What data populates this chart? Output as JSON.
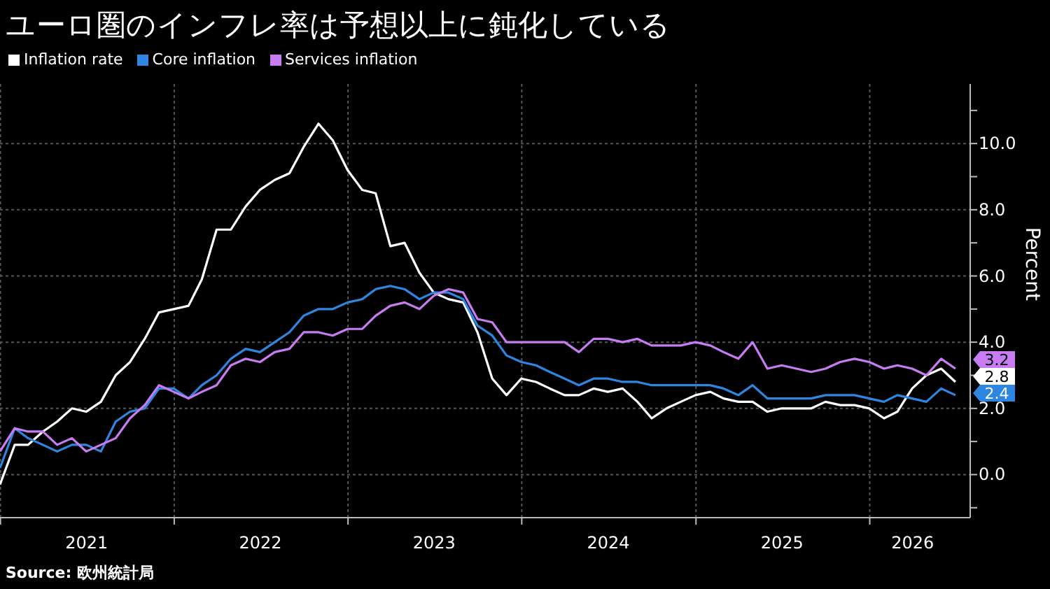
{
  "chart_data": {
    "type": "line",
    "title": "ユーロ圏のインフレ率は予想以上に鈍化している",
    "ylabel": "Percent",
    "annotations": [
      "Source: 欧州統計局"
    ],
    "legend": "top left",
    "grid": true,
    "x": [
      "2020-12-31",
      "2021-01-31",
      "2021-02-28",
      "2021-03-31",
      "2021-04-30",
      "2021-05-31",
      "2021-06-30",
      "2021-07-31",
      "2021-08-31",
      "2021-09-30",
      "2021-10-31",
      "2021-11-30",
      "2021-12-31",
      "2022-01-31",
      "2022-02-28",
      "2022-03-31",
      "2022-04-30",
      "2022-05-31",
      "2022-06-30",
      "2022-07-31",
      "2022-08-31",
      "2022-09-30",
      "2022-10-31",
      "2022-11-30",
      "2022-12-31",
      "2023-01-31",
      "2023-02-28",
      "2023-03-31",
      "2023-04-30",
      "2023-05-31",
      "2023-06-30",
      "2023-07-31",
      "2023-08-31",
      "2023-09-30",
      "2023-10-31",
      "2023-11-30",
      "2023-12-31",
      "2024-01-31",
      "2024-02-29",
      "2024-03-31",
      "2024-04-30",
      "2024-05-31",
      "2024-06-30",
      "2024-07-31",
      "2024-08-31",
      "2024-09-30",
      "2024-10-31",
      "2024-11-30",
      "2024-12-31",
      "2025-01-31",
      "2025-02-28",
      "2025-03-31",
      "2025-04-30",
      "2025-05-31",
      "2025-06-30",
      "2025-07-31",
      "2025-08-31",
      "2025-09-30",
      "2025-10-31",
      "2025-11-30",
      "2025-12-31",
      "2026-01-31",
      "2026-02-28",
      "2026-03-31",
      "2026-04-30",
      "2026-05-31",
      "2026-06-30"
    ],
    "series": [
      {
        "name": "Inflation rate",
        "color": "#ffffff",
        "values": [
          -0.3,
          0.9,
          0.9,
          1.3,
          1.6,
          2.0,
          1.9,
          2.2,
          3.0,
          3.4,
          4.1,
          4.9,
          5.0,
          5.1,
          5.9,
          7.4,
          7.4,
          8.1,
          8.6,
          8.9,
          9.1,
          9.9,
          10.6,
          10.1,
          9.2,
          8.6,
          8.5,
          6.9,
          7.0,
          6.1,
          5.5,
          5.3,
          5.2,
          4.3,
          2.9,
          2.4,
          2.9,
          2.8,
          2.6,
          2.4,
          2.4,
          2.6,
          2.5,
          2.6,
          2.2,
          1.7,
          2.0,
          2.2,
          2.4,
          2.5,
          2.3,
          2.2,
          2.2,
          1.9,
          2.0,
          2.0,
          2.0,
          2.2,
          2.1,
          2.1,
          2.0,
          1.7,
          1.9,
          2.6,
          3.0,
          3.2,
          2.8
        ],
        "value_labels": [
          null,
          null,
          null,
          null,
          null,
          null,
          null,
          null,
          null,
          null,
          null,
          null,
          null,
          null,
          null,
          null,
          null,
          null,
          null,
          null,
          null,
          null,
          null,
          null,
          null,
          null,
          null,
          null,
          null,
          null,
          null,
          null,
          null,
          null,
          null,
          null,
          null,
          null,
          null,
          null,
          null,
          null,
          null,
          null,
          null,
          null,
          null,
          null,
          null,
          null,
          null,
          null,
          null,
          null,
          null,
          null,
          null,
          null,
          null,
          null,
          null,
          null,
          null,
          null,
          null,
          null,
          "2.8"
        ]
      },
      {
        "name": "Core inflation",
        "color": "#2f86e0",
        "values": [
          0.2,
          1.4,
          1.1,
          0.9,
          0.7,
          0.9,
          0.9,
          0.7,
          1.6,
          1.9,
          2.0,
          2.6,
          2.6,
          2.3,
          2.7,
          3.0,
          3.5,
          3.8,
          3.7,
          4.0,
          4.3,
          4.8,
          5.0,
          5.0,
          5.2,
          5.3,
          5.6,
          5.7,
          5.6,
          5.3,
          5.5,
          5.5,
          5.3,
          4.5,
          4.2,
          3.6,
          3.4,
          3.3,
          3.1,
          2.9,
          2.7,
          2.9,
          2.9,
          2.8,
          2.8,
          2.7,
          2.7,
          2.7,
          2.7,
          2.7,
          2.6,
          2.4,
          2.7,
          2.3,
          2.3,
          2.3,
          2.3,
          2.4,
          2.4,
          2.4,
          2.3,
          2.2,
          2.4,
          2.3,
          2.2,
          2.6,
          2.4
        ],
        "value_labels": [
          null,
          null,
          null,
          null,
          null,
          null,
          null,
          null,
          null,
          null,
          null,
          null,
          null,
          null,
          null,
          null,
          null,
          null,
          null,
          null,
          null,
          null,
          null,
          null,
          null,
          null,
          null,
          null,
          null,
          null,
          null,
          null,
          null,
          null,
          null,
          null,
          null,
          null,
          null,
          null,
          null,
          null,
          null,
          null,
          null,
          null,
          null,
          null,
          null,
          null,
          null,
          null,
          null,
          null,
          null,
          null,
          null,
          null,
          null,
          null,
          null,
          null,
          null,
          null,
          null,
          null,
          "2.4"
        ]
      },
      {
        "name": "Services inflation",
        "color": "#c77cf2",
        "values": [
          0.7,
          1.4,
          1.3,
          1.3,
          0.9,
          1.1,
          0.7,
          0.9,
          1.1,
          1.7,
          2.1,
          2.7,
          2.5,
          2.3,
          2.5,
          2.7,
          3.3,
          3.5,
          3.4,
          3.7,
          3.8,
          4.3,
          4.3,
          4.2,
          4.4,
          4.4,
          4.8,
          5.1,
          5.2,
          5.0,
          5.4,
          5.6,
          5.5,
          4.7,
          4.6,
          4.0,
          4.0,
          4.0,
          4.0,
          4.0,
          3.7,
          4.1,
          4.1,
          4.0,
          4.1,
          3.9,
          3.9,
          3.9,
          4.0,
          3.9,
          3.7,
          3.5,
          4.0,
          3.2,
          3.3,
          3.2,
          3.1,
          3.2,
          3.4,
          3.5,
          3.4,
          3.2,
          3.3,
          3.2,
          3.0,
          3.5,
          3.2
        ],
        "value_labels": [
          null,
          null,
          null,
          null,
          null,
          null,
          null,
          null,
          null,
          null,
          null,
          null,
          null,
          null,
          null,
          null,
          null,
          null,
          null,
          null,
          null,
          null,
          null,
          null,
          null,
          null,
          null,
          null,
          null,
          null,
          null,
          null,
          null,
          null,
          null,
          null,
          null,
          null,
          null,
          null,
          null,
          null,
          null,
          null,
          null,
          null,
          null,
          null,
          null,
          null,
          null,
          null,
          null,
          null,
          null,
          null,
          null,
          null,
          null,
          null,
          null,
          null,
          null,
          null,
          null,
          null,
          "3.2"
        ]
      }
    ],
    "xlim": [
      "2020-12-31",
      "2026-07-31"
    ],
    "xticks": [
      {
        "value": "2021-01-01",
        "label": null
      },
      {
        "value": "2021-07-01",
        "label": "2021"
      },
      {
        "value": "2022-01-01",
        "label": null
      },
      {
        "value": "2022-07-01",
        "label": "2022"
      },
      {
        "value": "2023-01-01",
        "label": null
      },
      {
        "value": "2023-07-01",
        "label": "2023"
      },
      {
        "value": "2024-01-01",
        "label": null
      },
      {
        "value": "2024-07-01",
        "label": "2024"
      },
      {
        "value": "2025-01-01",
        "label": null
      },
      {
        "value": "2025-07-01",
        "label": "2025"
      },
      {
        "value": "2026-01-01",
        "label": null
      },
      {
        "value": "2026-04-01",
        "label": "2026"
      }
    ],
    "ylim": [
      -1.3,
      11.8
    ],
    "yticks": [
      {
        "value": -1,
        "label": null
      },
      {
        "value": 0,
        "label": "0.0"
      },
      {
        "value": 1,
        "label": null
      },
      {
        "value": 2,
        "label": "2.0"
      },
      {
        "value": 3,
        "label": null
      },
      {
        "value": 4,
        "label": "4.0"
      },
      {
        "value": 5,
        "label": null
      },
      {
        "value": 6,
        "label": "6.0"
      },
      {
        "value": 7,
        "label": null
      },
      {
        "value": 8,
        "label": "8.0"
      },
      {
        "value": 9,
        "label": null
      },
      {
        "value": 10,
        "label": "10.0"
      },
      {
        "value": 11,
        "label": null
      }
    ],
    "marker": "none",
    "line_style": "solid"
  }
}
